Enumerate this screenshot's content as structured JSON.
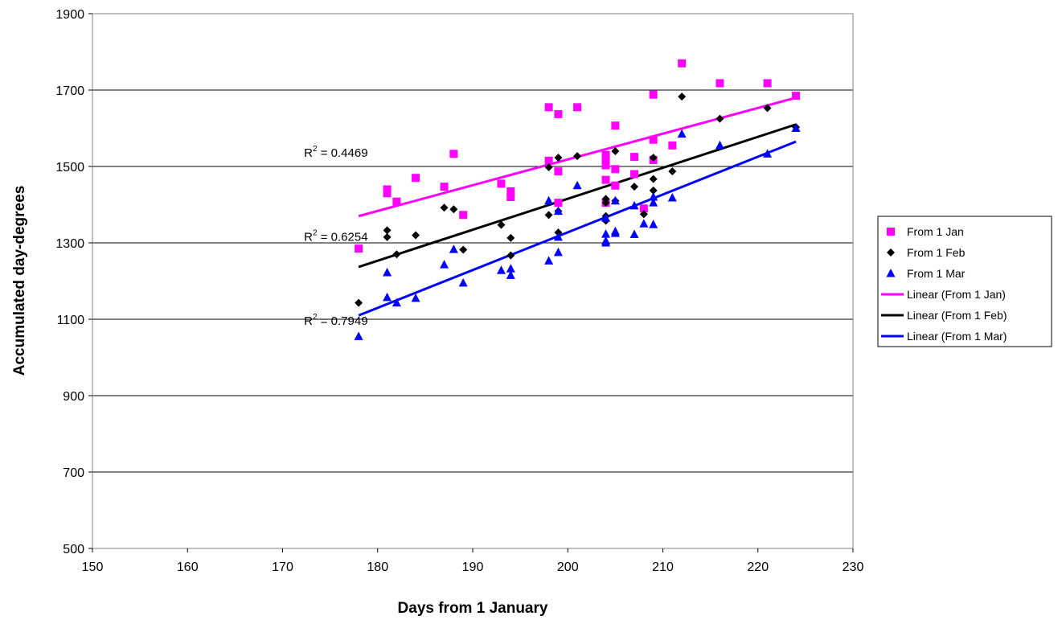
{
  "chart_data": {
    "type": "scatter",
    "title": "",
    "xlabel": "Days from 1 January",
    "ylabel": "Accumulated day-degrees",
    "xlim": [
      150,
      230
    ],
    "ylim": [
      500,
      1900
    ],
    "xticks": [
      "150",
      "160",
      "170",
      "180",
      "190",
      "200",
      "210",
      "220",
      "230"
    ],
    "yticks": [
      "500",
      "700",
      "900",
      "1100",
      "1300",
      "1500",
      "1700",
      "1900"
    ],
    "grid": "horizontal",
    "legend_position": "right",
    "series": [
      {
        "name": "From 1 Jan",
        "marker": "square",
        "color": "#FF00FF",
        "points": [
          [
            178,
            1285
          ],
          [
            181,
            1440
          ],
          [
            181,
            1430
          ],
          [
            182,
            1408
          ],
          [
            184,
            1470
          ],
          [
            187,
            1447
          ],
          [
            188,
            1533
          ],
          [
            189,
            1373
          ],
          [
            193,
            1455
          ],
          [
            194,
            1435
          ],
          [
            194,
            1420
          ],
          [
            198,
            1655
          ],
          [
            198,
            1515
          ],
          [
            199,
            1637
          ],
          [
            199,
            1487
          ],
          [
            199,
            1405
          ],
          [
            201,
            1655
          ],
          [
            204,
            1530
          ],
          [
            204,
            1520
          ],
          [
            204,
            1503
          ],
          [
            204,
            1465
          ],
          [
            204,
            1405
          ],
          [
            205,
            1607
          ],
          [
            205,
            1493
          ],
          [
            205,
            1450
          ],
          [
            207,
            1525
          ],
          [
            207,
            1480
          ],
          [
            208,
            1390
          ],
          [
            209,
            1688
          ],
          [
            209,
            1570
          ],
          [
            209,
            1517
          ],
          [
            211,
            1555
          ],
          [
            212,
            1770
          ],
          [
            216,
            1718
          ],
          [
            221,
            1718
          ],
          [
            224,
            1685
          ]
        ]
      },
      {
        "name": "From 1 Feb",
        "marker": "diamond",
        "color": "#000000",
        "points": [
          [
            178,
            1143
          ],
          [
            181,
            1333
          ],
          [
            181,
            1315
          ],
          [
            182,
            1270
          ],
          [
            184,
            1320
          ],
          [
            187,
            1392
          ],
          [
            188,
            1388
          ],
          [
            189,
            1282
          ],
          [
            193,
            1347
          ],
          [
            194,
            1313
          ],
          [
            194,
            1267
          ],
          [
            198,
            1498
          ],
          [
            198,
            1373
          ],
          [
            199,
            1523
          ],
          [
            199,
            1383
          ],
          [
            199,
            1327
          ],
          [
            201,
            1527
          ],
          [
            204,
            1415
          ],
          [
            204,
            1405
          ],
          [
            204,
            1370
          ],
          [
            204,
            1358
          ],
          [
            205,
            1540
          ],
          [
            205,
            1410
          ],
          [
            207,
            1447
          ],
          [
            208,
            1375
          ],
          [
            209,
            1523
          ],
          [
            209,
            1467
          ],
          [
            209,
            1437
          ],
          [
            211,
            1487
          ],
          [
            212,
            1683
          ],
          [
            216,
            1625
          ],
          [
            221,
            1653
          ],
          [
            224,
            1603
          ]
        ]
      },
      {
        "name": "From 1 Mar",
        "marker": "triangle",
        "color": "#0000FF",
        "points": [
          [
            178,
            1055
          ],
          [
            181,
            1222
          ],
          [
            181,
            1157
          ],
          [
            182,
            1143
          ],
          [
            184,
            1155
          ],
          [
            187,
            1243
          ],
          [
            188,
            1283
          ],
          [
            189,
            1195
          ],
          [
            193,
            1228
          ],
          [
            194,
            1232
          ],
          [
            194,
            1215
          ],
          [
            198,
            1410
          ],
          [
            198,
            1253
          ],
          [
            199,
            1383
          ],
          [
            199,
            1315
          ],
          [
            199,
            1275
          ],
          [
            201,
            1450
          ],
          [
            204,
            1365
          ],
          [
            204,
            1323
          ],
          [
            204,
            1305
          ],
          [
            204,
            1300
          ],
          [
            205,
            1410
          ],
          [
            205,
            1330
          ],
          [
            205,
            1325
          ],
          [
            207,
            1397
          ],
          [
            207,
            1322
          ],
          [
            208,
            1350
          ],
          [
            209,
            1420
          ],
          [
            209,
            1405
          ],
          [
            209,
            1348
          ],
          [
            211,
            1418
          ],
          [
            212,
            1585
          ],
          [
            216,
            1555
          ],
          [
            221,
            1533
          ],
          [
            224,
            1600
          ]
        ]
      }
    ],
    "trendlines": [
      {
        "name": "Linear (From 1 Jan)",
        "color": "#FF00FF",
        "x": [
          178,
          224
        ],
        "y": [
          1370,
          1680
        ],
        "r2": "R² = 0.4469",
        "r2_base": "R",
        "r2_sup": "2",
        "r2_rest": " = 0.4469",
        "r2_at": [
          181,
          1525
        ]
      },
      {
        "name": "Linear (From 1 Feb)",
        "color": "#000000",
        "x": [
          178,
          224
        ],
        "y": [
          1237,
          1610
        ],
        "r2": "R² = 0.6254",
        "r2_base": "R",
        "r2_sup": "2",
        "r2_rest": " = 0.6254",
        "r2_at": [
          181,
          1305
        ]
      },
      {
        "name": "Linear (From 1 Mar)",
        "color": "#0000FF",
        "x": [
          178,
          224
        ],
        "y": [
          1110,
          1565
        ],
        "r2": "R² = 0.7949",
        "r2_base": "R",
        "r2_sup": "2",
        "r2_rest": " = 0.7949",
        "r2_at": [
          181,
          1085
        ]
      }
    ],
    "legend": [
      "From 1 Jan",
      "From 1 Feb",
      "From 1 Mar",
      "Linear (From 1 Jan)",
      "Linear (From 1 Feb)",
      "Linear (From 1 Mar)"
    ]
  }
}
